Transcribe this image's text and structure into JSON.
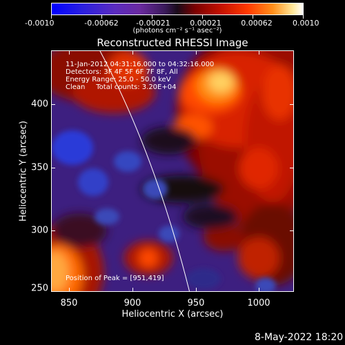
{
  "colorbar": {
    "tick_labels": [
      "-0.0010",
      "-0.00062",
      "-0.00021",
      "0.00021",
      "0.00062",
      "0.0010"
    ],
    "units": "(photons cm⁻² s⁻¹ asec⁻²)",
    "colors": {
      "min": "#0000ff",
      "mid": "#1a0a1a",
      "max": "#ffffff"
    }
  },
  "title": "Reconstructed RHESSI Image",
  "info": {
    "time": "11-Jan-2012 04:31:16.000 to 04:32:16.000",
    "detectors": "Detectors: 3F 4F 5F 6F 7F 8F, All",
    "energy": "Energy Range: 25.0 - 50.0 keV",
    "clean": "Clean     Total counts: 3.20E+04"
  },
  "peak": "Position of Peak = [951,419]",
  "axes": {
    "xlabel": "Heliocentric X (arcsec)",
    "ylabel": "Heliocentric Y (arcsec)",
    "xticks": [
      "850",
      "900",
      "950",
      "1000"
    ],
    "yticks": [
      "400",
      "350",
      "300",
      "250"
    ],
    "xlim": [
      834,
      1026
    ],
    "ylim": [
      249,
      440
    ]
  },
  "timestamp": "8-May-2022 18:20"
}
